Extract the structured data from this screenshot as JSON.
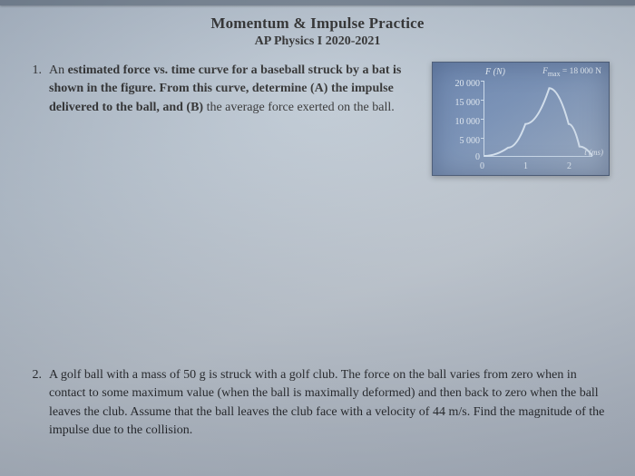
{
  "header": {
    "title": "Momentum & Impulse Practice",
    "subtitle": "AP Physics I 2020-2021"
  },
  "q1": {
    "number": "1.",
    "text_before_bold1": "An ",
    "bold1": "estimated force vs. time curve for a baseball struck by a bat is shown in the figure.  From this curve, determine (A) the impulse delivered to the ball, and (B)",
    "text_after_bold1": " the average force exerted on the ball."
  },
  "chart": {
    "type": "line",
    "y_label": "F (N)",
    "fmax_label": "F",
    "fmax_sub": "max",
    "fmax_value": " = 18 000 N",
    "x_label": "t (ms)",
    "y_ticks": [
      "20 000",
      "15 000",
      "10 000",
      "5 000",
      "0"
    ],
    "x_ticks": [
      "0",
      "1",
      "2"
    ],
    "ylim": [
      0,
      20000
    ],
    "xlim": [
      0,
      2.5
    ],
    "curve_points": [
      [
        0,
        0
      ],
      [
        0.55,
        2200
      ],
      [
        0.95,
        8500
      ],
      [
        1.5,
        18000
      ],
      [
        1.95,
        8500
      ],
      [
        2.2,
        2500
      ],
      [
        2.5,
        0
      ]
    ],
    "line_color": "#dceaf8",
    "line_width": 2,
    "background_color": "#6a86b0",
    "axis_color": "#cfe0f2",
    "text_color": "#e8f0f8"
  },
  "q2": {
    "number": "2.",
    "text": "A golf ball with a mass of 50 g is struck with a golf club.  The force on the ball varies from zero when in contact to some maximum value (when the ball is maximally deformed) and then back to zero when the ball leaves the club.  Assume that the ball leaves the club face with a velocity of 44 m/s.  Find the magnitude of the impulse due to the collision."
  }
}
